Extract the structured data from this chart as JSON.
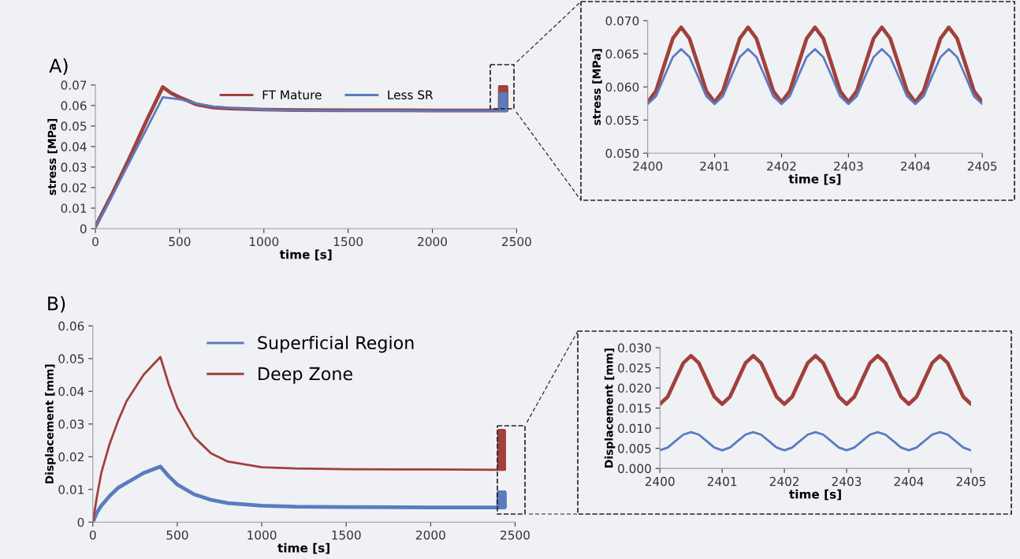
{
  "chart_data": [
    {
      "type": "line",
      "annotations": [
        "A)"
      ],
      "xlabel": "time [s]",
      "ylabel": "stress [MPa]",
      "xlim": [
        0,
        2500
      ],
      "xticks": [
        0,
        500,
        1000,
        1500,
        2000,
        2500
      ],
      "ylim": [
        0,
        0.07
      ],
      "yticks": [
        0,
        0.01,
        0.02,
        0.03,
        0.04,
        0.05,
        0.06,
        0.07
      ],
      "legend": "top",
      "x": [
        0,
        50,
        100,
        200,
        300,
        400,
        450,
        500,
        600,
        700,
        800,
        1000,
        1200,
        1500,
        2000,
        2400,
        2400.5,
        2401,
        2401.5,
        2402,
        2402.5,
        2403,
        2403.5,
        2404,
        2404.5,
        2405,
        2405.5,
        2406,
        2406.5,
        2407,
        2407.5,
        2408,
        2408.5,
        2409,
        2409.5,
        2410,
        2410.5,
        2411,
        2411.5,
        2412,
        2412.5,
        2413,
        2413.5,
        2414,
        2414.5,
        2415,
        2415.5,
        2416,
        2416.5,
        2417,
        2417.5,
        2418,
        2418.5,
        2419,
        2419.5,
        2420,
        2420.5,
        2421,
        2421.5,
        2422,
        2422.5,
        2423,
        2423.5,
        2424,
        2424.5,
        2425,
        2425.5,
        2426,
        2426.5,
        2427,
        2427.5,
        2428,
        2428.5,
        2429,
        2429.5,
        2430,
        2430.5,
        2431,
        2431.5,
        2432,
        2432.5,
        2433,
        2433.5,
        2434,
        2434.5,
        2435,
        2435.5,
        2436,
        2436.5,
        2437,
        2437.5,
        2438,
        2438.5,
        2439,
        2439.5,
        2440
      ],
      "series": [
        {
          "name": "FT Mature",
          "color": "#a0413c",
          "values": [
            0.001,
            0.009,
            0.017,
            0.034,
            0.052,
            0.069,
            0.066,
            0.064,
            0.0605,
            0.059,
            0.0585,
            0.058,
            0.0578,
            0.0577,
            0.0576,
            0.0576,
            0.069,
            0.0576,
            0.069,
            0.0576,
            0.069,
            0.0576,
            0.069,
            0.0576,
            0.069,
            0.0576,
            0.069,
            0.0576,
            0.069,
            0.0576,
            0.069,
            0.0576,
            0.069,
            0.0576,
            0.069,
            0.0576,
            0.069,
            0.0576,
            0.069,
            0.0576,
            0.069,
            0.0576,
            0.069,
            0.0576,
            0.069,
            0.0576,
            0.069,
            0.0576,
            0.069,
            0.0576,
            0.069,
            0.0576,
            0.069,
            0.0576,
            0.069,
            0.0576,
            0.069,
            0.0576,
            0.069,
            0.0576,
            0.069,
            0.0576,
            0.069,
            0.0576,
            0.069,
            0.0576,
            0.069,
            0.0576,
            0.069,
            0.0576,
            0.069,
            0.0576,
            0.069,
            0.0576,
            0.069,
            0.0576,
            0.069,
            0.0576,
            0.069,
            0.0576,
            0.069,
            0.0576,
            0.069,
            0.0576,
            0.069,
            0.0576,
            0.069,
            0.0576,
            0.069,
            0.0576,
            0.069,
            0.0576,
            0.069,
            0.0576,
            0.069,
            0.0576
          ]
        },
        {
          "name": "Less SR",
          "color": "#5b7bc0",
          "values": [
            0.001,
            0.008,
            0.016,
            0.032,
            0.048,
            0.064,
            0.0635,
            0.063,
            0.061,
            0.0595,
            0.0588,
            0.058,
            0.0576,
            0.0575,
            0.0574,
            0.0574,
            0.0656,
            0.0574,
            0.0656,
            0.0574,
            0.0656,
            0.0574,
            0.0656,
            0.0574,
            0.0656,
            0.0574,
            0.0656,
            0.0574,
            0.0656,
            0.0574,
            0.0656,
            0.0574,
            0.0656,
            0.0574,
            0.0656,
            0.0574,
            0.0656,
            0.0574,
            0.0656,
            0.0574,
            0.0656,
            0.0574,
            0.0656,
            0.0574,
            0.0656,
            0.0574,
            0.0656,
            0.0574,
            0.0656,
            0.0574,
            0.0656,
            0.0574,
            0.0656,
            0.0574,
            0.0656,
            0.0574,
            0.0656,
            0.0574,
            0.0656,
            0.0574,
            0.0656,
            0.0574,
            0.0656,
            0.0574,
            0.0656,
            0.0574,
            0.0656,
            0.0574,
            0.0656,
            0.0574,
            0.0656,
            0.0574,
            0.0656,
            0.0574,
            0.0656,
            0.0574,
            0.0656,
            0.0574,
            0.0656,
            0.0574,
            0.0656,
            0.0574,
            0.0656,
            0.0574,
            0.0656,
            0.0574,
            0.0656,
            0.0574,
            0.0656,
            0.0574,
            0.0656,
            0.0574,
            0.0656,
            0.0574,
            0.0656,
            0.0574
          ]
        }
      ]
    },
    {
      "type": "line",
      "xlabel": "time [s]",
      "ylabel": "stress [MPa]",
      "xlim": [
        2400,
        2405
      ],
      "xticks": [
        2400,
        2401,
        2402,
        2403,
        2404,
        2405
      ],
      "ylim": [
        0.05,
        0.07
      ],
      "yticks": [
        {
          "value": 0.05,
          "label": "0.050"
        },
        {
          "value": 0.055,
          "label": "0.055"
        },
        {
          "value": 0.06,
          "label": "0.060"
        },
        {
          "value": 0.065,
          "label": "0.065"
        },
        {
          "value": 0.07,
          "label": "0.070"
        }
      ],
      "x": [
        2400,
        2400.125,
        2400.25,
        2400.375,
        2400.5,
        2400.625,
        2400.75,
        2400.875,
        2401,
        2401.125,
        2401.25,
        2401.375,
        2401.5,
        2401.625,
        2401.75,
        2401.875,
        2402,
        2402.125,
        2402.25,
        2402.375,
        2402.5,
        2402.625,
        2402.75,
        2402.875,
        2403,
        2403.125,
        2403.25,
        2403.375,
        2403.5,
        2403.625,
        2403.75,
        2403.875,
        2404,
        2404.125,
        2404.25,
        2404.375,
        2404.5,
        2404.625,
        2404.75,
        2404.875,
        2405
      ],
      "series": [
        {
          "color": "#a0413c",
          "values": [
            0.0577,
            0.0594,
            0.0634,
            0.0673,
            0.069,
            0.0673,
            0.0634,
            0.0594,
            0.0577,
            0.0594,
            0.0634,
            0.0673,
            0.069,
            0.0673,
            0.0634,
            0.0594,
            0.0577,
            0.0594,
            0.0634,
            0.0673,
            0.069,
            0.0673,
            0.0634,
            0.0594,
            0.0577,
            0.0594,
            0.0634,
            0.0673,
            0.069,
            0.0673,
            0.0634,
            0.0594,
            0.0577,
            0.0594,
            0.0634,
            0.0673,
            0.069,
            0.0673,
            0.0634,
            0.0594,
            0.0577
          ]
        },
        {
          "color": "#5b7bc0",
          "values": [
            0.0574,
            0.0586,
            0.0616,
            0.0645,
            0.0657,
            0.0645,
            0.0616,
            0.0586,
            0.0574,
            0.0586,
            0.0616,
            0.0645,
            0.0657,
            0.0645,
            0.0616,
            0.0586,
            0.0574,
            0.0586,
            0.0616,
            0.0645,
            0.0657,
            0.0645,
            0.0616,
            0.0586,
            0.0574,
            0.0586,
            0.0616,
            0.0645,
            0.0657,
            0.0645,
            0.0616,
            0.0586,
            0.0574,
            0.0586,
            0.0616,
            0.0645,
            0.0657,
            0.0645,
            0.0616,
            0.0586,
            0.0574
          ]
        }
      ]
    },
    {
      "type": "line",
      "annotations": [
        "B)"
      ],
      "xlabel": "time [s]",
      "ylabel": "Displacement [mm]",
      "xlim": [
        0,
        2500
      ],
      "xticks": [
        0,
        500,
        1000,
        1500,
        2000,
        2500
      ],
      "ylim": [
        0,
        0.06
      ],
      "yticks": [
        0,
        0.01,
        0.02,
        0.03,
        0.04,
        0.05,
        0.06
      ],
      "legend": "top right",
      "x": [
        0,
        25,
        50,
        100,
        150,
        200,
        300,
        400,
        450,
        500,
        600,
        700,
        800,
        1000,
        1200,
        1500,
        2000,
        2400,
        2400.5,
        2401,
        2401.5,
        2402,
        2402.5,
        2403,
        2403.5,
        2404,
        2404.5,
        2405,
        2405.5,
        2406,
        2406.5,
        2407,
        2407.5,
        2408,
        2408.5,
        2409,
        2409.5,
        2410,
        2410.5,
        2411,
        2411.5,
        2412,
        2412.5,
        2413,
        2413.5,
        2414,
        2414.5,
        2415,
        2415.5,
        2416,
        2416.5,
        2417,
        2417.5,
        2418,
        2418.5,
        2419,
        2419.5,
        2420,
        2420.5,
        2421,
        2421.5,
        2422,
        2422.5,
        2423,
        2423.5,
        2424,
        2424.5,
        2425,
        2425.5,
        2426,
        2426.5,
        2427,
        2427.5,
        2428,
        2428.5,
        2429,
        2429.5,
        2430,
        2430.5,
        2431,
        2431.5,
        2432,
        2432.5,
        2433,
        2433.5,
        2434,
        2434.5,
        2435,
        2435.5,
        2436,
        2436.5,
        2437,
        2437.5,
        2438,
        2438.5,
        2439,
        2439.5,
        2440
      ],
      "series": [
        {
          "name": "Superficial Region",
          "color": "#5b7bc0",
          "values": [
            0,
            0.003,
            0.005,
            0.008,
            0.0105,
            0.012,
            0.015,
            0.017,
            0.014,
            0.0115,
            0.0085,
            0.0068,
            0.0058,
            0.005,
            0.0047,
            0.0046,
            0.0045,
            0.0045,
            0.009,
            0.0045,
            0.009,
            0.0045,
            0.009,
            0.0045,
            0.009,
            0.0045,
            0.009,
            0.0045,
            0.009,
            0.0045,
            0.009,
            0.0045,
            0.009,
            0.0045,
            0.009,
            0.0045,
            0.009,
            0.0045,
            0.009,
            0.0045,
            0.009,
            0.0045,
            0.009,
            0.0045,
            0.009,
            0.0045,
            0.009,
            0.0045,
            0.009,
            0.0045,
            0.009,
            0.0045,
            0.009,
            0.0045,
            0.009,
            0.0045,
            0.009,
            0.0045,
            0.009,
            0.0045,
            0.009,
            0.0045,
            0.009,
            0.0045,
            0.009,
            0.0045,
            0.009,
            0.0045,
            0.009,
            0.0045,
            0.009,
            0.0045,
            0.009,
            0.0045,
            0.009,
            0.0045,
            0.009,
            0.0045,
            0.009,
            0.0045,
            0.009,
            0.0045,
            0.009,
            0.0045,
            0.009,
            0.0045,
            0.009,
            0.0045,
            0.009,
            0.0045,
            0.009,
            0.0045,
            0.009,
            0.0045,
            0.009,
            0.0045,
            0.009,
            0.0045
          ]
        },
        {
          "name": "Deep Zone",
          "color": "#a0413c",
          "values": [
            0,
            0.008,
            0.015,
            0.024,
            0.031,
            0.037,
            0.045,
            0.0505,
            0.042,
            0.035,
            0.026,
            0.021,
            0.0185,
            0.0168,
            0.0164,
            0.0162,
            0.0161,
            0.016,
            0.028,
            0.016,
            0.028,
            0.016,
            0.028,
            0.016,
            0.028,
            0.016,
            0.028,
            0.016,
            0.028,
            0.016,
            0.028,
            0.016,
            0.028,
            0.016,
            0.028,
            0.016,
            0.028,
            0.016,
            0.028,
            0.016,
            0.028,
            0.016,
            0.028,
            0.016,
            0.028,
            0.016,
            0.028,
            0.016,
            0.028,
            0.016,
            0.028,
            0.016,
            0.028,
            0.016,
            0.028,
            0.016,
            0.028,
            0.016,
            0.028,
            0.016,
            0.028,
            0.016,
            0.028,
            0.016,
            0.028,
            0.016,
            0.028,
            0.016,
            0.028,
            0.016,
            0.028,
            0.016,
            0.028,
            0.016,
            0.028,
            0.016,
            0.028,
            0.016,
            0.028,
            0.016,
            0.028,
            0.016,
            0.028,
            0.016,
            0.028,
            0.016,
            0.028,
            0.016,
            0.028,
            0.016,
            0.028,
            0.016,
            0.028,
            0.016,
            0.028,
            0.016,
            0.028,
            0.016
          ]
        }
      ]
    },
    {
      "type": "line",
      "xlabel": "time [s]",
      "ylabel": "Displacement [mm]",
      "xlim": [
        2400,
        2405
      ],
      "xticks": [
        2400,
        2401,
        2402,
        2403,
        2404,
        2405
      ],
      "ylim": [
        0,
        0.03
      ],
      "yticks": [
        {
          "value": 0,
          "label": "0.000"
        },
        {
          "value": 0.005,
          "label": "0.005"
        },
        {
          "value": 0.01,
          "label": "0.010"
        },
        {
          "value": 0.015,
          "label": "0.015"
        },
        {
          "value": 0.02,
          "label": "0.020"
        },
        {
          "value": 0.025,
          "label": "0.025"
        },
        {
          "value": 0.03,
          "label": "0.030"
        }
      ],
      "x": [
        2400,
        2400.125,
        2400.25,
        2400.375,
        2400.5,
        2400.625,
        2400.75,
        2400.875,
        2401,
        2401.125,
        2401.25,
        2401.375,
        2401.5,
        2401.625,
        2401.75,
        2401.875,
        2402,
        2402.125,
        2402.25,
        2402.375,
        2402.5,
        2402.625,
        2402.75,
        2402.875,
        2403,
        2403.125,
        2403.25,
        2403.375,
        2403.5,
        2403.625,
        2403.75,
        2403.875,
        2404,
        2404.125,
        2404.25,
        2404.375,
        2404.5,
        2404.625,
        2404.75,
        2404.875,
        2405
      ],
      "series": [
        {
          "color": "#a0413c",
          "values": [
            0.016,
            0.0178,
            0.022,
            0.0262,
            0.028,
            0.0262,
            0.022,
            0.0178,
            0.016,
            0.0178,
            0.022,
            0.0262,
            0.028,
            0.0262,
            0.022,
            0.0178,
            0.016,
            0.0178,
            0.022,
            0.0262,
            0.028,
            0.0262,
            0.022,
            0.0178,
            0.016,
            0.0178,
            0.022,
            0.0262,
            0.028,
            0.0262,
            0.022,
            0.0178,
            0.016,
            0.0178,
            0.022,
            0.0262,
            0.028,
            0.0262,
            0.022,
            0.0178,
            0.016
          ]
        },
        {
          "color": "#5b7bc0",
          "values": [
            0.0045,
            0.0052,
            0.0068,
            0.0084,
            0.009,
            0.0084,
            0.0068,
            0.0052,
            0.0045,
            0.0052,
            0.0068,
            0.0084,
            0.009,
            0.0084,
            0.0068,
            0.0052,
            0.0045,
            0.0052,
            0.0068,
            0.0084,
            0.009,
            0.0084,
            0.0068,
            0.0052,
            0.0045,
            0.0052,
            0.0068,
            0.0084,
            0.009,
            0.0084,
            0.0068,
            0.0052,
            0.0045,
            0.0052,
            0.0068,
            0.0084,
            0.009,
            0.0084,
            0.0068,
            0.0052,
            0.0045
          ]
        }
      ]
    }
  ]
}
